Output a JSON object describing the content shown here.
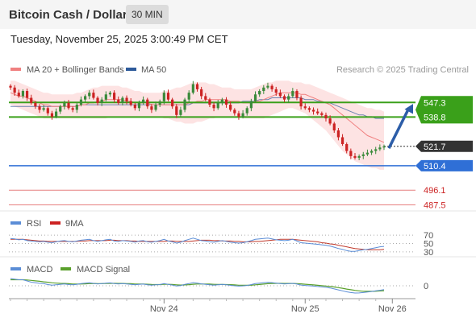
{
  "header": {
    "title": "Bitcoin Cash / Dollar",
    "interval": "30 MIN",
    "timestamp": "Tuesday, November 25, 2025 3:00:49 PM CET"
  },
  "legend": {
    "ma20": "MA 20 + Bollinger Bands",
    "ma50": "MA 50",
    "research": "Research © 2025 Trading Central",
    "rsi": "RSI",
    "rsi_ma": "9MA",
    "macd": "MACD",
    "macd_signal": "MACD Signal"
  },
  "colors": {
    "ma20": "#f08080",
    "bollinger_fill": "#fde0e0",
    "ma50": "#2d5a9a",
    "bull_candle": "#3a8a3a",
    "bear_candle": "#cc2222",
    "resistance": "#3aa01a",
    "support": "#2f6fd6",
    "lower_level": "#e06060",
    "current_price": "#333333",
    "arrow": "#2c5da8",
    "rsi": "#5b8dd6",
    "rsi_ma": "#c0392b",
    "macd": "#5b8dd6",
    "macd_signal": "#5aa02c"
  },
  "chart_data": [
    {
      "type": "candlestick",
      "title": "Bitcoin Cash / Dollar",
      "ylim": [
        484,
        562
      ],
      "levels": [
        {
          "value": 547.3,
          "label": "547.3",
          "kind": "resistance"
        },
        {
          "value": 538.8,
          "label": "538.8",
          "kind": "resistance"
        },
        {
          "value": 521.7,
          "label": "521.7",
          "kind": "current"
        },
        {
          "value": 510.4,
          "label": "510.4",
          "kind": "support"
        },
        {
          "value": 496.1,
          "label": "496.1",
          "kind": "lower"
        },
        {
          "value": 487.5,
          "label": "487.5",
          "kind": "lower"
        }
      ],
      "x_ticks": [
        {
          "label": "Nov 24",
          "index": 37
        },
        {
          "label": "Nov 25",
          "index": 71
        },
        {
          "label": "Nov 26",
          "index": 92
        }
      ],
      "forecast_arrow": {
        "from": 521.5,
        "to": 546.5
      },
      "close": [
        556,
        553,
        551,
        554,
        550,
        547,
        545,
        543,
        544,
        541,
        539,
        542,
        545,
        547,
        544,
        543,
        546,
        549,
        551,
        553,
        550,
        547,
        549,
        552,
        553,
        549,
        547,
        550,
        548,
        546,
        544,
        547,
        549,
        545,
        543,
        546,
        548,
        553,
        549,
        545,
        540,
        543,
        549,
        553,
        558,
        555,
        551,
        549,
        546,
        544,
        547,
        549,
        546,
        543,
        541,
        539,
        541,
        544,
        548,
        552,
        554,
        556,
        557,
        555,
        553,
        551,
        549,
        551,
        554,
        550,
        545,
        544,
        543,
        542,
        541,
        540,
        538,
        535,
        531,
        527,
        523,
        519,
        516,
        515,
        516,
        517,
        518,
        519,
        520,
        521,
        521.7
      ],
      "ma20": [
        553,
        552,
        551,
        551,
        550,
        549,
        548,
        547,
        546,
        546,
        545,
        545,
        545,
        545,
        545,
        545,
        545,
        546,
        546,
        547,
        547,
        548,
        548,
        549,
        549,
        549,
        549,
        549,
        548,
        548,
        547,
        547,
        547,
        547,
        546,
        546,
        546,
        546,
        546,
        546,
        546,
        546,
        546,
        547,
        547,
        548,
        548,
        549,
        549,
        549,
        549,
        549,
        549,
        548,
        548,
        548,
        547,
        547,
        547,
        548,
        548,
        549,
        550,
        551,
        552,
        553,
        553,
        553,
        553,
        553,
        552,
        552,
        551,
        550,
        549,
        548,
        547,
        546,
        544,
        542,
        540,
        538,
        536,
        534,
        532,
        530,
        528,
        527,
        526,
        525,
        524
      ],
      "ma50": [
        545,
        545,
        545,
        545,
        545,
        545,
        545,
        545,
        545,
        545,
        545,
        545,
        545,
        545,
        545,
        545,
        545,
        546,
        546,
        546,
        546,
        546,
        546,
        546,
        546,
        546,
        546,
        546,
        546,
        546,
        546,
        546,
        546,
        546,
        546,
        546,
        546,
        546,
        546,
        546,
        546,
        546,
        546,
        546,
        547,
        547,
        547,
        547,
        547,
        547,
        547,
        547,
        547,
        547,
        547,
        547,
        548,
        548,
        548,
        548,
        549,
        549,
        549,
        550,
        550,
        550,
        550,
        550,
        550,
        550,
        550,
        549,
        549,
        549,
        548,
        548,
        547,
        547,
        546,
        545,
        544,
        543,
        542,
        541,
        540,
        540,
        539,
        539,
        538,
        538,
        538
      ],
      "bollinger_upper": [
        560,
        560,
        559,
        558,
        557,
        556,
        555,
        554,
        553,
        553,
        552,
        552,
        552,
        552,
        552,
        552,
        553,
        553,
        554,
        555,
        556,
        556,
        557,
        557,
        557,
        557,
        557,
        556,
        556,
        555,
        554,
        554,
        553,
        553,
        553,
        553,
        553,
        554,
        554,
        555,
        556,
        556,
        557,
        558,
        559,
        559,
        559,
        559,
        558,
        558,
        557,
        556,
        556,
        556,
        555,
        555,
        555,
        555,
        555,
        556,
        557,
        558,
        559,
        559,
        560,
        560,
        560,
        560,
        559,
        559,
        559,
        558,
        558,
        557,
        556,
        555,
        554,
        553,
        552,
        551,
        550,
        549,
        548,
        547,
        546,
        545,
        544,
        544,
        543,
        543,
        542
      ],
      "bollinger_lower": [
        546,
        545,
        544,
        543,
        542,
        541,
        540,
        539,
        538,
        538,
        538,
        538,
        538,
        538,
        538,
        538,
        538,
        538,
        538,
        538,
        538,
        538,
        538,
        538,
        539,
        539,
        539,
        539,
        539,
        539,
        539,
        539,
        539,
        539,
        539,
        539,
        539,
        538,
        538,
        537,
        536,
        536,
        535,
        535,
        535,
        536,
        536,
        537,
        538,
        538,
        539,
        539,
        539,
        539,
        539,
        539,
        538,
        538,
        538,
        538,
        538,
        538,
        539,
        540,
        541,
        542,
        543,
        544,
        544,
        543,
        542,
        541,
        539,
        537,
        535,
        533,
        531,
        528,
        525,
        522,
        519,
        517,
        515,
        513,
        512,
        511,
        510,
        509,
        509,
        508,
        508
      ]
    },
    {
      "type": "line",
      "series": [
        {
          "name": "RSI"
        },
        {
          "name": "9MA"
        }
      ],
      "ylim": [
        20,
        80
      ],
      "levels": [
        70,
        50,
        30
      ],
      "tick_labels": [
        "70",
        "50",
        "30"
      ],
      "rsi": [
        62,
        61,
        59,
        60,
        57,
        56,
        55,
        54,
        55,
        53,
        52,
        54,
        56,
        57,
        55,
        54,
        56,
        58,
        59,
        60,
        57,
        55,
        57,
        59,
        60,
        56,
        55,
        57,
        56,
        55,
        53,
        56,
        57,
        54,
        53,
        55,
        57,
        60,
        56,
        54,
        51,
        53,
        57,
        60,
        63,
        60,
        57,
        56,
        54,
        53,
        55,
        57,
        55,
        53,
        52,
        51,
        52,
        54,
        57,
        60,
        61,
        62,
        63,
        61,
        59,
        58,
        57,
        58,
        60,
        56,
        52,
        51,
        50,
        49,
        48,
        47,
        46,
        44,
        41,
        38,
        36,
        33,
        31,
        31,
        33,
        35,
        36,
        38,
        40,
        42,
        43
      ],
      "rsi_ma": [
        60,
        60,
        60,
        60,
        59,
        58,
        57,
        56,
        56,
        55,
        55,
        55,
        55,
        55,
        55,
        55,
        55,
        56,
        56,
        57,
        57,
        57,
        57,
        57,
        58,
        58,
        57,
        57,
        57,
        56,
        56,
        55,
        55,
        55,
        55,
        55,
        55,
        55,
        56,
        56,
        55,
        55,
        55,
        55,
        56,
        57,
        58,
        58,
        58,
        57,
        57,
        56,
        56,
        56,
        55,
        55,
        54,
        54,
        54,
        55,
        55,
        56,
        57,
        58,
        59,
        60,
        60,
        60,
        60,
        59,
        58,
        57,
        56,
        55,
        54,
        52,
        51,
        49,
        48,
        46,
        44,
        42,
        40,
        38,
        37,
        36,
        35,
        35,
        35,
        35,
        36
      ]
    },
    {
      "type": "line",
      "series": [
        {
          "name": "MACD"
        },
        {
          "name": "MACD Signal"
        }
      ],
      "ylim": [
        -10,
        10
      ],
      "tick_labels": [
        "0"
      ],
      "macd": [
        6,
        5.5,
        5,
        5,
        4,
        3,
        2.5,
        2,
        1.8,
        1,
        0.5,
        0.8,
        1.2,
        1.5,
        1,
        0.8,
        1.2,
        1.8,
        2.2,
        2.5,
        2,
        1.5,
        1.8,
        2.2,
        2.4,
        1.8,
        1.5,
        1.8,
        1.5,
        1.2,
        0.8,
        1.2,
        1.4,
        0.8,
        0.5,
        0.8,
        1,
        1.8,
        1.2,
        0.6,
        -0.2,
        0.2,
        1.2,
        1.8,
        2.6,
        2.2,
        1.6,
        1.2,
        0.8,
        0.5,
        0.8,
        1.2,
        0.8,
        0.4,
        0,
        -0.3,
        -0.1,
        0.3,
        1,
        1.8,
        2.2,
        2.6,
        2.8,
        2.6,
        2.2,
        1.8,
        1.5,
        1.7,
        2,
        1.4,
        0.6,
        0.3,
        0,
        -0.3,
        -0.6,
        -0.9,
        -1.3,
        -1.8,
        -2.6,
        -3.4,
        -4.2,
        -5,
        -5.6,
        -6,
        -5.9,
        -5.6,
        -5.2,
        -4.7,
        -4.2,
        -3.7,
        -3.2
      ],
      "macd_signal": [
        5,
        5,
        5,
        5,
        4.8,
        4.5,
        4.1,
        3.7,
        3.3,
        2.9,
        2.5,
        2.2,
        2,
        1.9,
        1.7,
        1.5,
        1.4,
        1.5,
        1.6,
        1.8,
        1.9,
        1.8,
        1.8,
        1.9,
        2,
        2,
        1.9,
        1.9,
        1.8,
        1.7,
        1.5,
        1.4,
        1.4,
        1.3,
        1.1,
        1,
        1,
        1.2,
        1.2,
        1.1,
        0.8,
        0.6,
        0.7,
        0.9,
        1.3,
        1.5,
        1.5,
        1.5,
        1.4,
        1.2,
        1.1,
        1.1,
        1,
        0.9,
        0.7,
        0.5,
        0.4,
        0.4,
        0.5,
        0.8,
        1.1,
        1.4,
        1.7,
        1.9,
        2,
        2,
        1.9,
        1.9,
        1.9,
        1.8,
        1.6,
        1.3,
        1,
        0.7,
        0.4,
        0.1,
        -0.2,
        -0.6,
        -1,
        -1.5,
        -2.1,
        -2.7,
        -3.3,
        -3.8,
        -4.2,
        -4.5,
        -4.6,
        -4.6,
        -4.5,
        -4.3,
        -4.1
      ]
    }
  ]
}
